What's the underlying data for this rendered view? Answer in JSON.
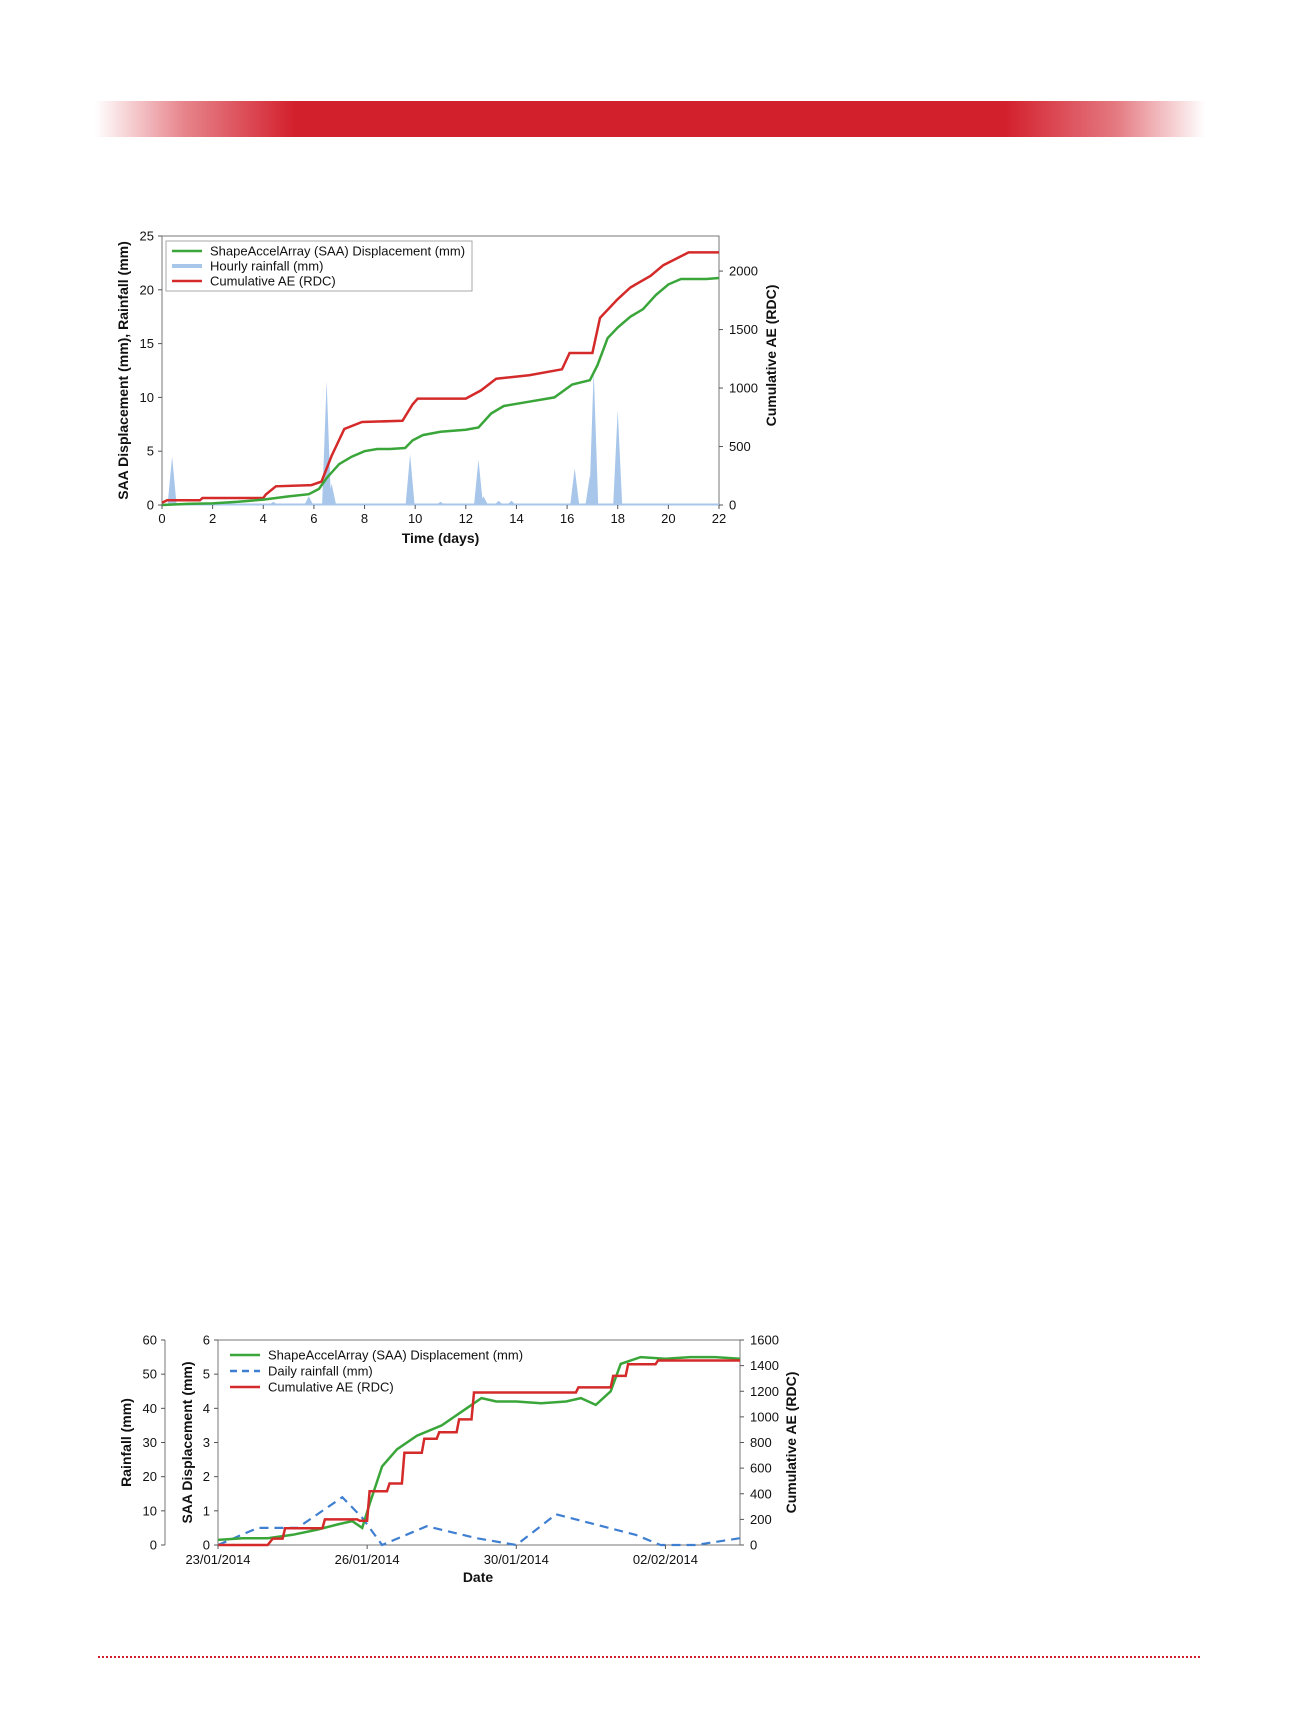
{
  "page": {
    "header_band_color": "#d3202d",
    "footer_rule_color": "#d3202d"
  },
  "chart_data": [
    {
      "type": "line",
      "title": "",
      "xlabel": "Time (days)",
      "ylabel_left": "SAA Displacement (mm), Rainfall (mm)",
      "ylabel_right": "Cumulative AE (RDC)",
      "xlim": [
        0,
        22
      ],
      "ylim_left": [
        0,
        25
      ],
      "ylim_right": [
        0,
        2300
      ],
      "x_ticks": [
        "0",
        "2",
        "4",
        "6",
        "8",
        "10",
        "12",
        "14",
        "16",
        "18",
        "20",
        "22"
      ],
      "y_left_ticks": [
        "0",
        "5",
        "10",
        "15",
        "20",
        "25"
      ],
      "y_right_ticks": [
        "0",
        "500",
        "1000",
        "1500",
        "2000"
      ],
      "legend_position": "top-left",
      "grid": false,
      "series": [
        {
          "name": "ShapeAccelArray (SAA) Displacement (mm)",
          "axis": "left",
          "color": "#3aa63a",
          "style": "solid",
          "points": [
            [
              0,
              0
            ],
            [
              1,
              0.1
            ],
            [
              2,
              0.15
            ],
            [
              3,
              0.3
            ],
            [
              4,
              0.5
            ],
            [
              5,
              0.8
            ],
            [
              5.8,
              1
            ],
            [
              6.2,
              1.5
            ],
            [
              6.5,
              2.5
            ],
            [
              7,
              3.8
            ],
            [
              7.5,
              4.5
            ],
            [
              8,
              5
            ],
            [
              8.5,
              5.2
            ],
            [
              9,
              5.2
            ],
            [
              9.6,
              5.3
            ],
            [
              9.9,
              6
            ],
            [
              10.3,
              6.5
            ],
            [
              11,
              6.8
            ],
            [
              12,
              7
            ],
            [
              12.5,
              7.2
            ],
            [
              13,
              8.5
            ],
            [
              13.5,
              9.2
            ],
            [
              14.5,
              9.6
            ],
            [
              15.5,
              10
            ],
            [
              16.2,
              11.2
            ],
            [
              16.9,
              11.6
            ],
            [
              17.2,
              13
            ],
            [
              17.6,
              15.5
            ],
            [
              18,
              16.5
            ],
            [
              18.5,
              17.5
            ],
            [
              19,
              18.2
            ],
            [
              19.5,
              19.5
            ],
            [
              20,
              20.5
            ],
            [
              20.5,
              21
            ],
            [
              21.5,
              21
            ],
            [
              22,
              21.1
            ]
          ]
        },
        {
          "name": "Hourly rainfall (mm)",
          "axis": "left",
          "color": "#a7c6ea",
          "style": "spikes",
          "points": [
            [
              0.4,
              4.5
            ],
            [
              4.4,
              0.3
            ],
            [
              5.8,
              0.8
            ],
            [
              6.5,
              11.5
            ],
            [
              6.7,
              2
            ],
            [
              9.8,
              4.7
            ],
            [
              11,
              0.3
            ],
            [
              12.5,
              4.2
            ],
            [
              12.7,
              0.8
            ],
            [
              13.3,
              0.4
            ],
            [
              13.8,
              0.4
            ],
            [
              16.3,
              3.4
            ],
            [
              16.9,
              2.7
            ],
            [
              17.05,
              12.5
            ],
            [
              18,
              8.8
            ]
          ]
        },
        {
          "name": "Cumulative AE (RDC)",
          "axis": "right",
          "color": "#d42a2a",
          "style": "solid",
          "points": [
            [
              0,
              20
            ],
            [
              0.2,
              40
            ],
            [
              1.5,
              40
            ],
            [
              1.6,
              60
            ],
            [
              4,
              60
            ],
            [
              4.1,
              90
            ],
            [
              4.5,
              160
            ],
            [
              5.9,
              170
            ],
            [
              6.3,
              200
            ],
            [
              6.7,
              420
            ],
            [
              7.2,
              650
            ],
            [
              7.9,
              710
            ],
            [
              9.5,
              720
            ],
            [
              9.9,
              860
            ],
            [
              10.1,
              910
            ],
            [
              12,
              910
            ],
            [
              12.6,
              980
            ],
            [
              13.2,
              1080
            ],
            [
              14.5,
              1110
            ],
            [
              15.8,
              1160
            ],
            [
              16.1,
              1300
            ],
            [
              17,
              1300
            ],
            [
              17.3,
              1600
            ],
            [
              18,
              1760
            ],
            [
              18.5,
              1860
            ],
            [
              19.3,
              1960
            ],
            [
              19.8,
              2050
            ],
            [
              20.8,
              2160
            ],
            [
              22,
              2160
            ]
          ]
        }
      ]
    },
    {
      "type": "line",
      "title": "",
      "xlabel": "Date",
      "ylabel_left_outer": "Rainfall (mm)",
      "ylabel_left_inner": "SAA Displacement (mm)",
      "ylabel_right": "Cumulative AE (RDC)",
      "xlim": [
        0,
        10.5
      ],
      "ylim_rain": [
        0,
        60
      ],
      "ylim_disp": [
        0,
        6
      ],
      "ylim_right": [
        0,
        1600
      ],
      "x_ticks": [
        {
          "label": "23/01/2014",
          "x": 0
        },
        {
          "label": "26/01/2014",
          "x": 3
        },
        {
          "label": "30/01/2014",
          "x": 6
        },
        {
          "label": "02/02/2014",
          "x": 9
        }
      ],
      "y_rain_ticks": [
        "0",
        "10",
        "20",
        "30",
        "40",
        "50",
        "60"
      ],
      "y_disp_ticks": [
        "0",
        "1",
        "2",
        "3",
        "4",
        "5",
        "6"
      ],
      "y_right_ticks": [
        "0",
        "200",
        "400",
        "600",
        "800",
        "1000",
        "1200",
        "1400",
        "1600"
      ],
      "legend_position": "top-left",
      "grid": false,
      "series": [
        {
          "name": "ShapeAccelArray (SAA) Displacement (mm)",
          "axis": "disp",
          "color": "#3aa63a",
          "style": "solid",
          "points": [
            [
              0,
              0.15
            ],
            [
              0.5,
              0.2
            ],
            [
              1,
              0.2
            ],
            [
              1.5,
              0.3
            ],
            [
              2,
              0.45
            ],
            [
              2.4,
              0.6
            ],
            [
              2.7,
              0.7
            ],
            [
              2.9,
              0.5
            ],
            [
              3.05,
              1.2
            ],
            [
              3.3,
              2.3
            ],
            [
              3.6,
              2.8
            ],
            [
              4,
              3.2
            ],
            [
              4.5,
              3.5
            ],
            [
              5,
              4
            ],
            [
              5.3,
              4.3
            ],
            [
              5.6,
              4.2
            ],
            [
              6,
              4.2
            ],
            [
              6.5,
              4.15
            ],
            [
              7,
              4.2
            ],
            [
              7.3,
              4.3
            ],
            [
              7.6,
              4.1
            ],
            [
              7.9,
              4.5
            ],
            [
              8.1,
              5.3
            ],
            [
              8.5,
              5.5
            ],
            [
              9,
              5.45
            ],
            [
              9.5,
              5.5
            ],
            [
              10,
              5.5
            ],
            [
              10.5,
              5.45
            ]
          ]
        },
        {
          "name": "Daily rainfall (mm)",
          "axis": "rain",
          "color": "#3f7fd1",
          "style": "dashed",
          "points": [
            [
              0,
              0
            ],
            [
              0.8,
              5
            ],
            [
              1.6,
              5
            ],
            [
              2.5,
              14
            ],
            [
              2.9,
              8
            ],
            [
              3.3,
              0
            ],
            [
              4.2,
              5.5
            ],
            [
              5.2,
              2
            ],
            [
              6,
              0
            ],
            [
              6.8,
              9
            ],
            [
              8.4,
              3
            ],
            [
              8.9,
              0
            ],
            [
              9.6,
              0
            ],
            [
              10.5,
              2
            ]
          ]
        },
        {
          "name": "Cumulative AE (RDC)",
          "axis": "right",
          "color": "#d42a2a",
          "style": "solid",
          "points": [
            [
              0,
              0
            ],
            [
              1,
              0
            ],
            [
              1.1,
              50
            ],
            [
              1.3,
              50
            ],
            [
              1.35,
              130
            ],
            [
              2.1,
              130
            ],
            [
              2.15,
              200
            ],
            [
              2.8,
              200
            ],
            [
              2.85,
              190
            ],
            [
              3,
              190
            ],
            [
              3.05,
              420
            ],
            [
              3.4,
              420
            ],
            [
              3.45,
              480
            ],
            [
              3.7,
              480
            ],
            [
              3.75,
              720
            ],
            [
              4.1,
              720
            ],
            [
              4.15,
              830
            ],
            [
              4.4,
              830
            ],
            [
              4.45,
              880
            ],
            [
              4.8,
              880
            ],
            [
              4.85,
              980
            ],
            [
              5.1,
              980
            ],
            [
              5.15,
              1190
            ],
            [
              7.2,
              1190
            ],
            [
              7.25,
              1230
            ],
            [
              7.9,
              1230
            ],
            [
              7.95,
              1320
            ],
            [
              8.2,
              1320
            ],
            [
              8.25,
              1410
            ],
            [
              8.8,
              1410
            ],
            [
              8.85,
              1440
            ],
            [
              10.5,
              1440
            ]
          ]
        }
      ]
    }
  ]
}
